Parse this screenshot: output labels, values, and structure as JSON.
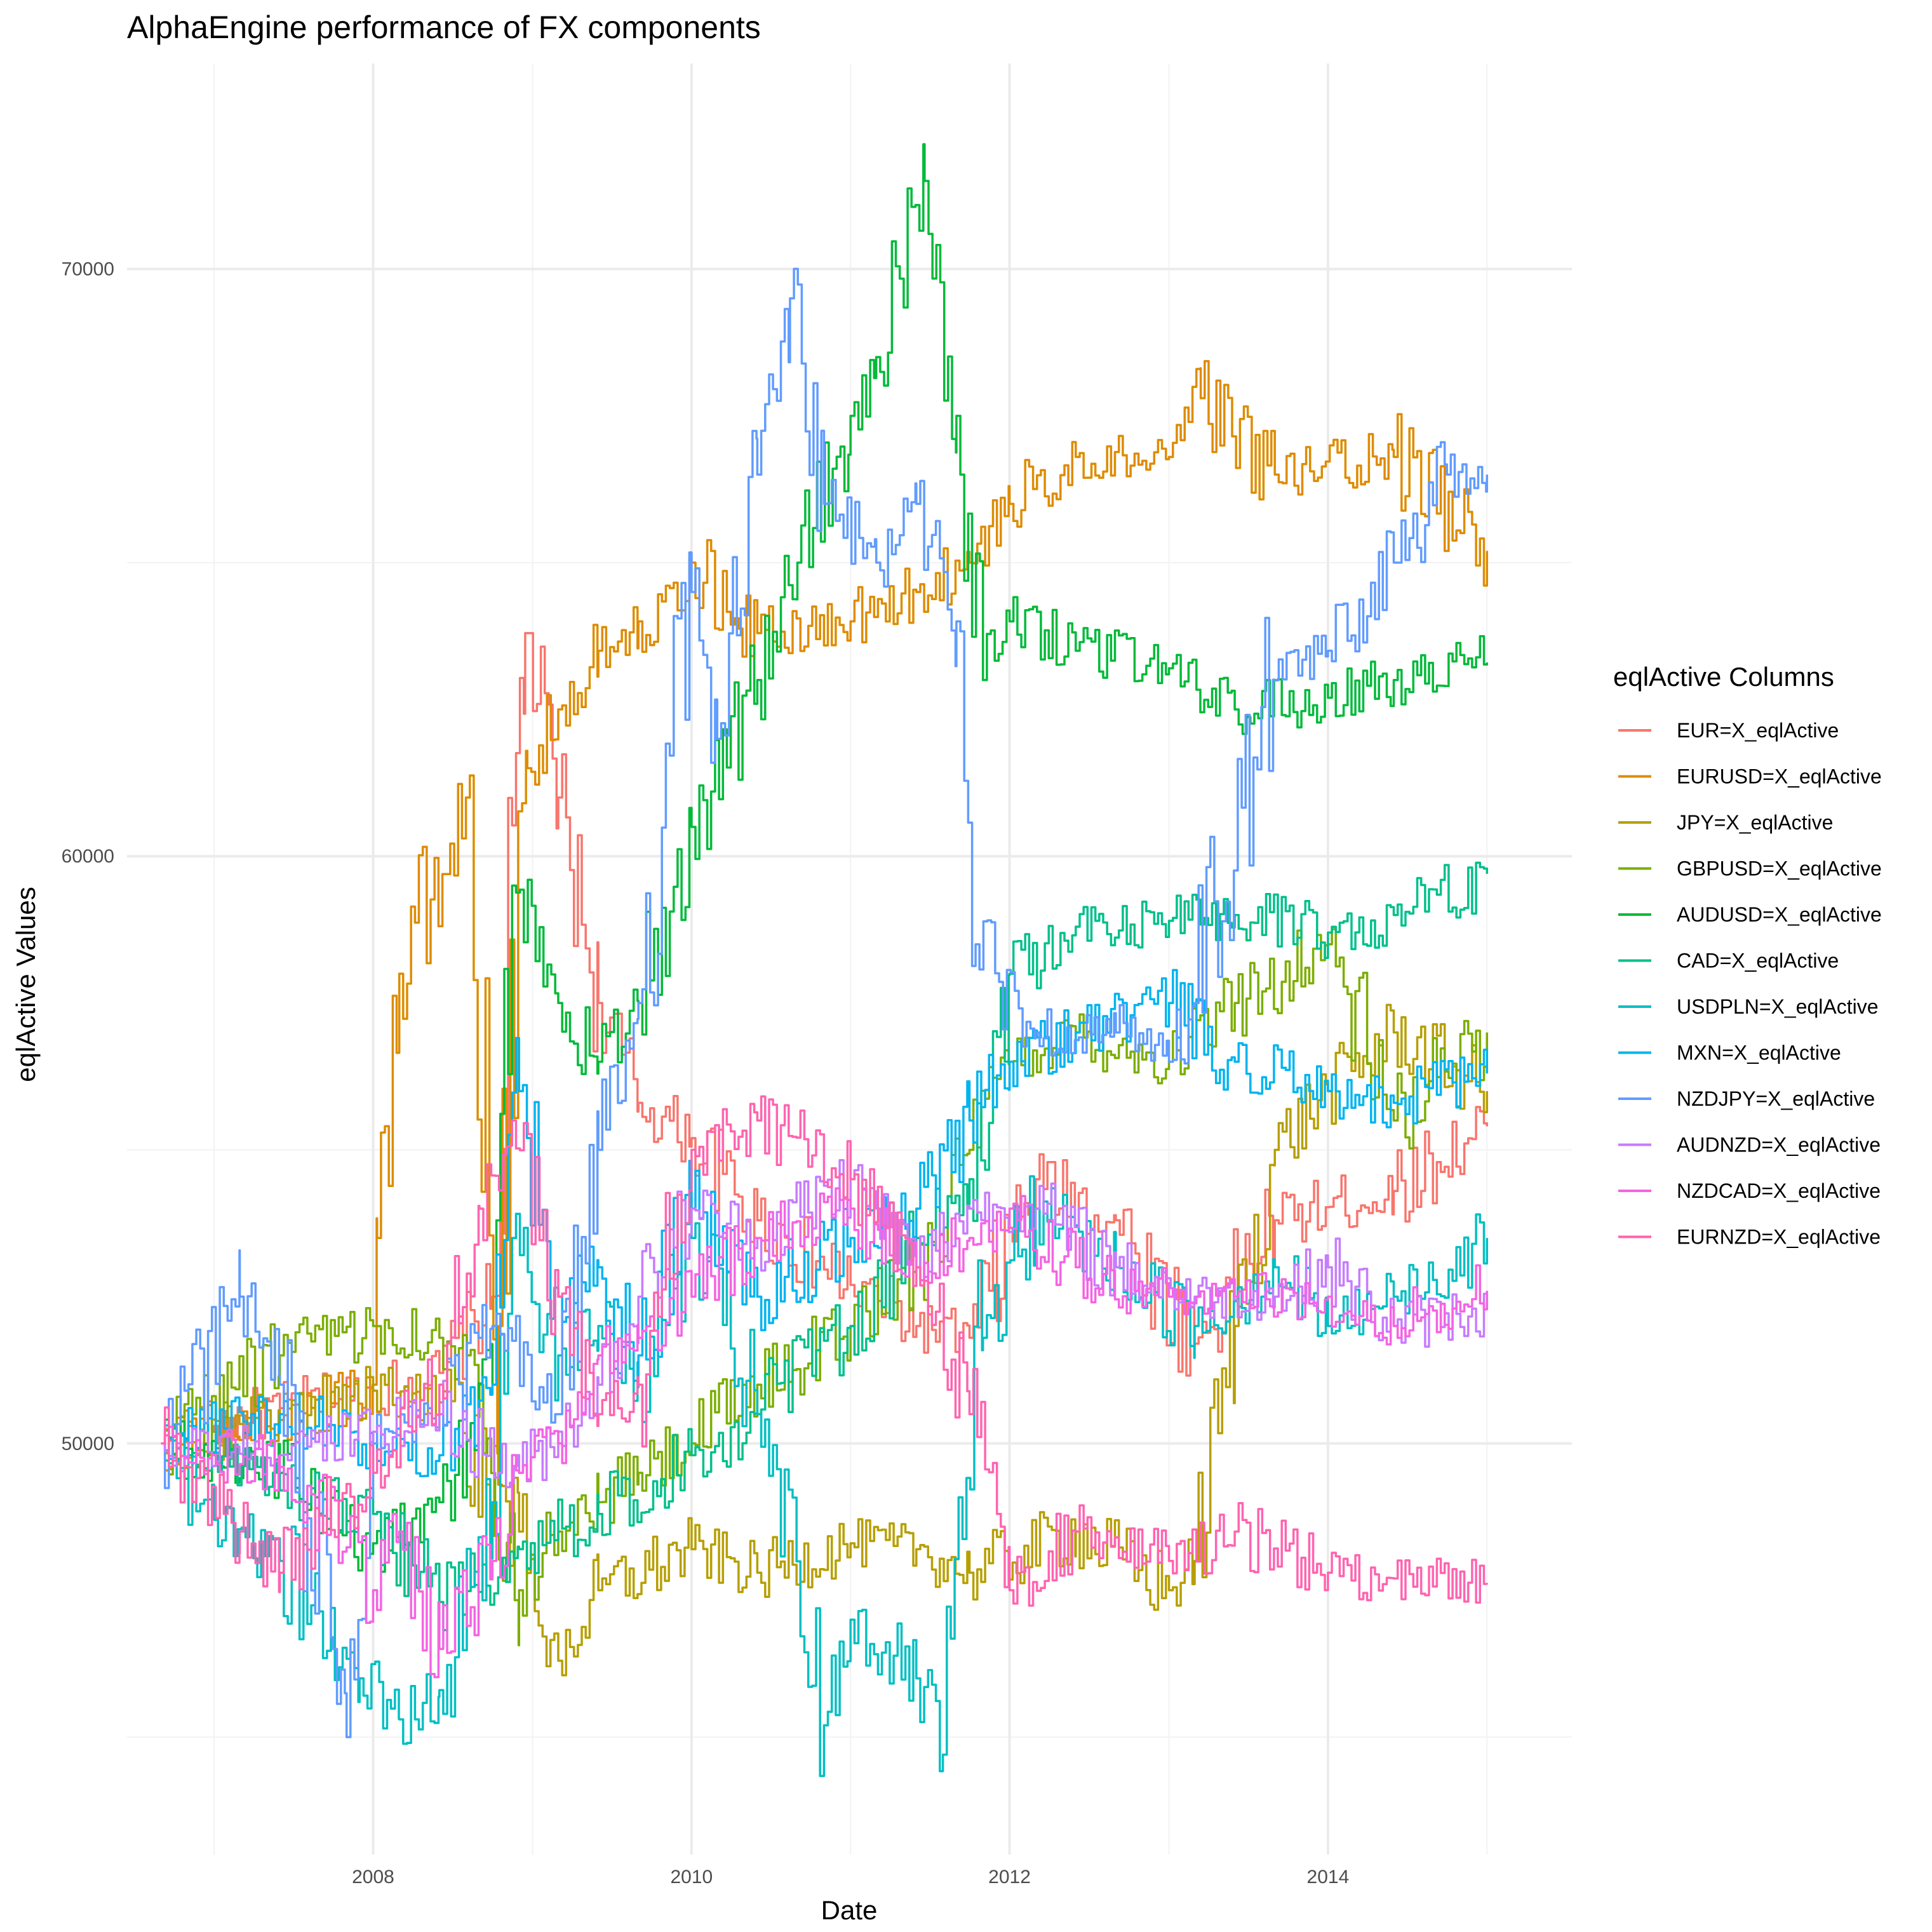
{
  "chart_data": {
    "type": "line",
    "title": "AlphaEngine performance of FX components",
    "xlabel": "Date",
    "ylabel": "eqlActive Values",
    "legend_title": "eqlActive Columns",
    "legend_position": "right",
    "grid": true,
    "xlim": [
      "2006-06-15",
      "2015-07-15"
    ],
    "ylim": [
      43000,
      73500
    ],
    "x_ticks": [
      "2008",
      "2010",
      "2012",
      "2014"
    ],
    "y_ticks": [
      "50000",
      "60000",
      "70000"
    ],
    "series": [
      {
        "name": "EUR=X_eqlActive",
        "color": "#F8766D",
        "x": [
          "2006-09-01",
          "2007-01-01",
          "2007-06-01",
          "2008-01-01",
          "2008-06-01",
          "2008-10-01",
          "2008-12-15",
          "2009-03-01",
          "2009-06-01",
          "2009-09-01",
          "2010-01-01",
          "2010-06-01",
          "2011-01-01",
          "2011-06-01",
          "2011-10-01",
          "2012-03-01",
          "2012-09-01",
          "2013-03-01",
          "2013-09-01",
          "2014-06-01",
          "2015-01-01"
        ],
        "values": [
          50000,
          50300,
          50600,
          50900,
          51200,
          52500,
          63800,
          61000,
          57500,
          55800,
          55200,
          53800,
          52700,
          52000,
          51800,
          54500,
          53800,
          51700,
          53800,
          54300,
          55400
        ]
      },
      {
        "name": "EURUSD=X_eqlActive",
        "color": "#DE8C00",
        "x": [
          "2006-09-01",
          "2007-06-01",
          "2007-12-31",
          "2008-01-10",
          "2008-03-01",
          "2008-08-01",
          "2008-10-15",
          "2008-12-20",
          "2009-03-01",
          "2009-06-01",
          "2009-09-01",
          "2010-01-01",
          "2010-06-01",
          "2011-01-01",
          "2011-06-01",
          "2011-10-01",
          "2012-01-01",
          "2012-06-01",
          "2013-01-01",
          "2013-03-15",
          "2013-09-01",
          "2014-06-01",
          "2015-01-01"
        ],
        "values": [
          50000,
          50400,
          51000,
          53500,
          58000,
          61000,
          52000,
          61500,
          62500,
          63500,
          64000,
          65000,
          63800,
          64000,
          64500,
          65000,
          66000,
          66800,
          66800,
          67800,
          66500,
          66800,
          65200
        ]
      },
      {
        "name": "JPY=X_eqlActive",
        "color": "#B79F00",
        "x": [
          "2006-09-01",
          "2007-06-01",
          "2008-01-01",
          "2008-06-01",
          "2008-12-01",
          "2009-03-01",
          "2009-06-01",
          "2010-01-01",
          "2010-06-01",
          "2011-01-01",
          "2011-06-01",
          "2011-10-01",
          "2012-06-01",
          "2013-01-01",
          "2013-03-01",
          "2013-06-01",
          "2013-09-01",
          "2014-01-01",
          "2014-06-01",
          "2015-01-01"
        ],
        "values": [
          50000,
          50400,
          50900,
          50700,
          48500,
          46300,
          47500,
          48200,
          47800,
          48300,
          48200,
          47800,
          48500,
          47500,
          48000,
          52000,
          55000,
          56000,
          57000,
          56000
        ]
      },
      {
        "name": "GBPUSD=X_eqlActive",
        "color": "#7CAE00",
        "x": [
          "2006-09-01",
          "2007-06-01",
          "2008-01-01",
          "2008-06-01",
          "2008-09-01",
          "2008-12-01",
          "2009-03-01",
          "2009-06-01",
          "2009-09-01",
          "2010-01-01",
          "2010-06-01",
          "2011-01-01",
          "2011-06-01",
          "2011-10-01",
          "2012-01-01",
          "2012-06-01",
          "2013-01-01",
          "2013-06-01",
          "2014-01-01",
          "2014-06-01",
          "2015-01-01"
        ],
        "values": [
          50000,
          51500,
          52000,
          51800,
          51000,
          47500,
          48500,
          49000,
          49500,
          50000,
          51000,
          52000,
          53000,
          55000,
          56500,
          57000,
          56500,
          57500,
          58500,
          55500,
          57000
        ]
      },
      {
        "name": "AUDUSD=X_eqlActive",
        "color": "#00BA38",
        "x": [
          "2006-09-01",
          "2007-06-01",
          "2008-01-01",
          "2008-06-01",
          "2008-10-01",
          "2008-11-15",
          "2009-03-01",
          "2009-06-01",
          "2009-09-01",
          "2010-01-01",
          "2010-06-01",
          "2010-09-01",
          "2011-01-01",
          "2011-03-01",
          "2011-06-20",
          "2011-09-01",
          "2011-11-01",
          "2012-01-01",
          "2012-06-01",
          "2013-01-01",
          "2013-06-01",
          "2014-01-01",
          "2014-06-01",
          "2015-01-01"
        ],
        "values": [
          50000,
          49500,
          48300,
          49000,
          51000,
          59500,
          57500,
          56500,
          57500,
          60500,
          63000,
          65000,
          67500,
          68500,
          71500,
          67500,
          63000,
          64000,
          63500,
          63200,
          62500,
          62700,
          63000,
          63300
        ]
      },
      {
        "name": "CAD=X_eqlActive",
        "color": "#00C08B",
        "x": [
          "2006-09-01",
          "2007-01-01",
          "2007-06-01",
          "2008-01-01",
          "2008-06-01",
          "2008-12-01",
          "2009-06-01",
          "2010-01-01",
          "2010-06-01",
          "2011-01-01",
          "2011-06-01",
          "2011-10-01",
          "2012-01-01",
          "2012-06-01",
          "2013-01-01",
          "2013-06-01",
          "2014-01-01",
          "2014-06-01",
          "2015-01-01"
        ],
        "values": [
          50000,
          49800,
          49200,
          48800,
          47300,
          48200,
          48800,
          49800,
          50500,
          52000,
          53500,
          54500,
          58000,
          58800,
          58900,
          59000,
          58700,
          59000,
          59700
        ]
      },
      {
        "name": "USDPLN=X_eqlActive",
        "color": "#00BFC4",
        "x": [
          "2006-09-01",
          "2007-01-01",
          "2007-06-01",
          "2007-12-01",
          "2008-03-01",
          "2008-06-01",
          "2008-10-01",
          "2008-11-15",
          "2009-03-01",
          "2009-06-01",
          "2009-09-01",
          "2010-01-01",
          "2010-06-01",
          "2010-11-01",
          "2011-01-01",
          "2011-06-01",
          "2011-08-01",
          "2011-11-01",
          "2012-03-01",
          "2012-09-01",
          "2013-03-01",
          "2013-09-01",
          "2014-01-01",
          "2014-06-01",
          "2015-01-01"
        ],
        "values": [
          50000,
          48700,
          48000,
          46000,
          45300,
          45800,
          49000,
          53500,
          51500,
          52000,
          51000,
          53500,
          50500,
          45200,
          47000,
          46000,
          44700,
          51800,
          54000,
          53000,
          52000,
          53000,
          52000,
          52500,
          53500
        ]
      },
      {
        "name": "MXN=X_eqlActive",
        "color": "#00B4F0",
        "x": [
          "2006-09-01",
          "2007-06-01",
          "2008-01-01",
          "2008-06-01",
          "2008-10-01",
          "2008-12-01",
          "2009-03-01",
          "2009-06-01",
          "2009-09-01",
          "2010-01-01",
          "2010-06-01",
          "2011-01-01",
          "2011-06-01",
          "2011-10-01",
          "2012-01-01",
          "2012-06-01",
          "2013-01-01",
          "2013-06-01",
          "2014-01-01",
          "2014-06-01",
          "2015-01-01"
        ],
        "values": [
          50000,
          50500,
          50000,
          49800,
          51000,
          56000,
          52500,
          53000,
          51500,
          54000,
          52500,
          53500,
          54000,
          55500,
          56500,
          57000,
          57500,
          56500,
          56000,
          55800,
          56300
        ]
      },
      {
        "name": "NZDJPY=X_eqlActive",
        "color": "#619CFF",
        "x": [
          "2006-09-01",
          "2007-03-01",
          "2007-06-01",
          "2007-10-01",
          "2007-11-01",
          "2008-01-01",
          "2008-06-01",
          "2008-10-01",
          "2009-03-01",
          "2009-06-01",
          "2009-09-01",
          "2010-01-01",
          "2010-03-01",
          "2010-06-01",
          "2010-08-15",
          "2010-11-01",
          "2011-03-01",
          "2011-06-01",
          "2011-09-01",
          "2011-10-15",
          "2012-03-01",
          "2012-09-01",
          "2013-01-01",
          "2013-03-01",
          "2013-09-01",
          "2014-01-01",
          "2014-06-01",
          "2014-10-01",
          "2015-01-01"
        ],
        "values": [
          50000,
          52500,
          51000,
          46500,
          45000,
          50000,
          50500,
          52000,
          50500,
          55000,
          57500,
          64500,
          62000,
          66500,
          69500,
          66000,
          65000,
          66000,
          64000,
          58500,
          57000,
          57000,
          56500,
          57500,
          63000,
          63500,
          65000,
          66500,
          66500
        ]
      },
      {
        "name": "AUDNZD=X_eqlActive",
        "color": "#C77CFF",
        "x": [
          "2006-09-01",
          "2007-06-01",
          "2008-01-01",
          "2008-06-01",
          "2008-12-01",
          "2009-03-01",
          "2009-06-01",
          "2009-09-01",
          "2010-01-01",
          "2010-06-01",
          "2011-01-01",
          "2011-03-01",
          "2011-06-01",
          "2011-10-01",
          "2012-03-01",
          "2012-09-01",
          "2013-03-01",
          "2013-09-01",
          "2014-01-01",
          "2014-06-01",
          "2015-01-01"
        ],
        "values": [
          50000,
          49800,
          50200,
          50500,
          49500,
          50200,
          51000,
          52500,
          54000,
          53500,
          54500,
          54000,
          53000,
          54000,
          54000,
          53000,
          52500,
          52500,
          53000,
          52000,
          52300
        ]
      },
      {
        "name": "NZDCAD=X_eqlActive",
        "color": "#F564E3",
        "x": [
          "2006-09-01",
          "2007-06-01",
          "2008-01-01",
          "2008-03-01",
          "2008-06-01",
          "2008-10-01",
          "2008-12-01",
          "2009-03-01",
          "2009-06-01",
          "2009-09-01",
          "2010-01-01",
          "2010-06-01",
          "2011-01-01",
          "2011-06-01",
          "2011-10-01",
          "2012-01-01",
          "2012-06-01",
          "2013-01-01",
          "2013-06-01",
          "2014-01-01",
          "2014-06-01",
          "2015-01-01"
        ],
        "values": [
          50000,
          49600,
          47500,
          48500,
          46500,
          48000,
          49500,
          50000,
          51500,
          51800,
          52500,
          53500,
          54000,
          53000,
          53500,
          54000,
          53000,
          52500,
          52500,
          52500,
          52000,
          52600
        ]
      },
      {
        "name": "EURNZD=X_eqlActive",
        "color": "#FF64B0",
        "x": [
          "2006-09-01",
          "2007-03-01",
          "2007-06-01",
          "2008-01-01",
          "2008-06-01",
          "2008-09-01",
          "2008-11-15",
          "2009-03-01",
          "2009-06-01",
          "2009-09-01",
          "2010-01-01",
          "2010-06-01",
          "2011-01-01",
          "2011-06-01",
          "2011-10-01",
          "2012-01-01",
          "2012-06-01",
          "2013-01-01",
          "2013-06-01",
          "2014-01-01",
          "2014-06-01",
          "2015-01-01"
        ],
        "values": [
          50000,
          48500,
          47800,
          49500,
          51000,
          54000,
          55500,
          52500,
          50500,
          51000,
          55000,
          55500,
          54500,
          53000,
          50500,
          47500,
          48500,
          48000,
          48500,
          47800,
          47700,
          47600
        ]
      }
    ]
  }
}
